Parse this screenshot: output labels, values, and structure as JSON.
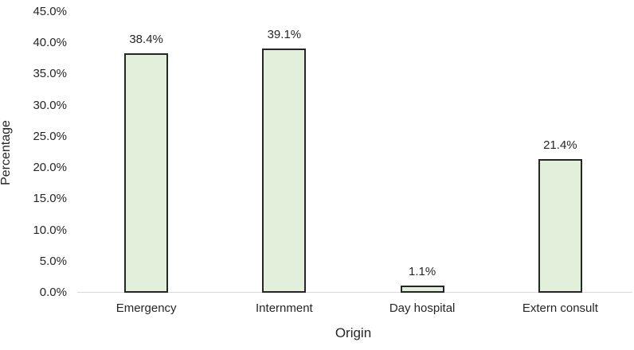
{
  "chart_data": {
    "type": "bar",
    "categories": [
      "Emergency",
      "Internment",
      "Day hospital",
      "Extern consult"
    ],
    "values": [
      38.4,
      39.1,
      1.1,
      21.4
    ],
    "data_labels": [
      "38.4%",
      "39.1%",
      "1.1%",
      "21.4%"
    ],
    "title": "",
    "xlabel": "Origin",
    "ylabel": "Percentage",
    "ylim": [
      0,
      45
    ],
    "ytick_step": 5,
    "ytick_labels": [
      "0.0%",
      "5.0%",
      "10.0%",
      "15.0%",
      "20.0%",
      "25.0%",
      "30.0%",
      "35.0%",
      "40.0%",
      "45.0%"
    ],
    "grid": false,
    "legend": "none",
    "colors": {
      "bar_fill": "#e2efda",
      "bar_border": "#262626",
      "axis_line": "#d9d9d9",
      "text": "#262626",
      "background": "#ffffff"
    }
  }
}
